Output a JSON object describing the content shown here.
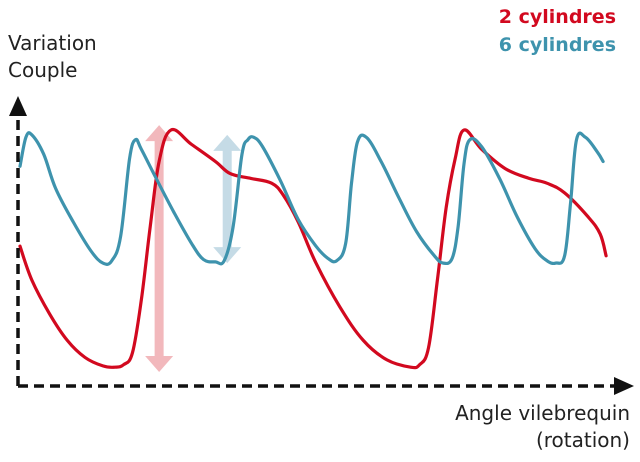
{
  "chart_data": {
    "type": "line",
    "title": "",
    "ylabel_lines": [
      "Variation",
      "Couple"
    ],
    "xlabel_lines": [
      "Angle vilebrequin",
      "(rotation)"
    ],
    "x_ticks": false,
    "y_ticks": false,
    "grid": false,
    "legend_placement": "top-right",
    "xlim": [
      0,
      1
    ],
    "ylim": [
      0,
      1
    ],
    "series": [
      {
        "name": "2 cylindres",
        "color": "#d2091f",
        "points": [
          [
            0.0,
            0.52
          ],
          [
            0.02,
            0.38
          ],
          [
            0.05,
            0.24
          ],
          [
            0.08,
            0.13
          ],
          [
            0.11,
            0.06
          ],
          [
            0.14,
            0.025
          ],
          [
            0.16,
            0.02
          ],
          [
            0.175,
            0.03
          ],
          [
            0.19,
            0.08
          ],
          [
            0.205,
            0.3
          ],
          [
            0.22,
            0.6
          ],
          [
            0.235,
            0.87
          ],
          [
            0.255,
            1.0
          ],
          [
            0.29,
            0.94
          ],
          [
            0.33,
            0.87
          ],
          [
            0.355,
            0.82
          ],
          [
            0.39,
            0.8
          ],
          [
            0.425,
            0.78
          ],
          [
            0.445,
            0.73
          ],
          [
            0.47,
            0.62
          ],
          [
            0.5,
            0.45
          ],
          [
            0.54,
            0.27
          ],
          [
            0.58,
            0.13
          ],
          [
            0.62,
            0.05
          ],
          [
            0.66,
            0.02
          ],
          [
            0.675,
            0.03
          ],
          [
            0.69,
            0.1
          ],
          [
            0.705,
            0.38
          ],
          [
            0.72,
            0.68
          ],
          [
            0.735,
            0.88
          ],
          [
            0.75,
            1.0
          ],
          [
            0.78,
            0.92
          ],
          [
            0.82,
            0.84
          ],
          [
            0.86,
            0.8
          ],
          [
            0.89,
            0.78
          ],
          [
            0.92,
            0.74
          ],
          [
            0.96,
            0.64
          ],
          [
            0.98,
            0.57
          ],
          [
            0.99,
            0.48
          ]
        ]
      },
      {
        "name": "6 cylindres",
        "color": "#3e93ad",
        "points": [
          [
            0.0,
            0.85
          ],
          [
            0.01,
            0.97
          ],
          [
            0.02,
            0.98
          ],
          [
            0.04,
            0.9
          ],
          [
            0.06,
            0.76
          ],
          [
            0.09,
            0.62
          ],
          [
            0.12,
            0.5
          ],
          [
            0.14,
            0.45
          ],
          [
            0.155,
            0.46
          ],
          [
            0.17,
            0.56
          ],
          [
            0.185,
            0.88
          ],
          [
            0.195,
            0.96
          ],
          [
            0.205,
            0.92
          ],
          [
            0.23,
            0.8
          ],
          [
            0.26,
            0.66
          ],
          [
            0.29,
            0.53
          ],
          [
            0.31,
            0.465
          ],
          [
            0.33,
            0.455
          ],
          [
            0.345,
            0.46
          ],
          [
            0.36,
            0.6
          ],
          [
            0.375,
            0.9
          ],
          [
            0.385,
            0.96
          ],
          [
            0.395,
            0.97
          ],
          [
            0.41,
            0.93
          ],
          [
            0.44,
            0.79
          ],
          [
            0.47,
            0.63
          ],
          [
            0.5,
            0.52
          ],
          [
            0.52,
            0.47
          ],
          [
            0.535,
            0.46
          ],
          [
            0.55,
            0.53
          ],
          [
            0.56,
            0.78
          ],
          [
            0.57,
            0.95
          ],
          [
            0.585,
            0.97
          ],
          [
            0.61,
            0.87
          ],
          [
            0.64,
            0.72
          ],
          [
            0.67,
            0.58
          ],
          [
            0.7,
            0.48
          ],
          [
            0.715,
            0.45
          ],
          [
            0.73,
            0.47
          ],
          [
            0.74,
            0.6
          ],
          [
            0.75,
            0.86
          ],
          [
            0.76,
            0.96
          ],
          [
            0.78,
            0.93
          ],
          [
            0.81,
            0.8
          ],
          [
            0.84,
            0.64
          ],
          [
            0.87,
            0.51
          ],
          [
            0.89,
            0.46
          ],
          [
            0.905,
            0.45
          ],
          [
            0.92,
            0.48
          ],
          [
            0.93,
            0.7
          ],
          [
            0.94,
            0.96
          ],
          [
            0.955,
            0.97
          ],
          [
            0.975,
            0.91
          ],
          [
            0.985,
            0.87
          ]
        ]
      }
    ],
    "annotations": [
      {
        "kind": "double-arrow",
        "color": "#f2b8bc",
        "x": 0.235,
        "y_from": 0.0,
        "y_to": 1.02
      },
      {
        "kind": "double-arrow",
        "color": "#c5dbe6",
        "x": 0.35,
        "y_from": 0.45,
        "y_to": 0.98
      }
    ]
  }
}
